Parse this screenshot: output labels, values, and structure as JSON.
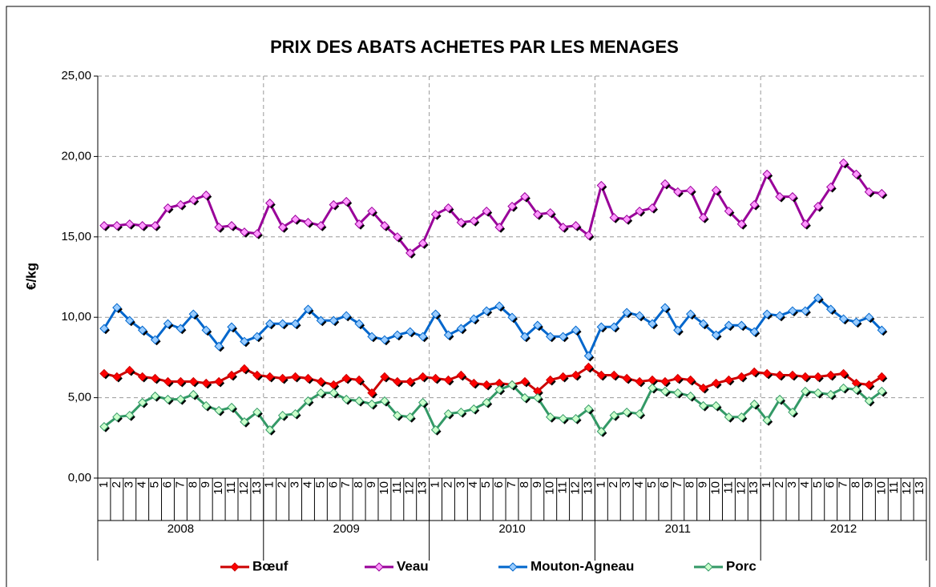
{
  "chart_data": {
    "type": "line",
    "title": "PRIX DES ABATS ACHETES PAR LES MENAGES",
    "y_label": "€/kg",
    "categories": [
      "1",
      "2",
      "3",
      "4",
      "5",
      "6",
      "7",
      "8",
      "9",
      "10",
      "11",
      "12",
      "13",
      "1",
      "2",
      "3",
      "4",
      "5",
      "6",
      "7",
      "8",
      "9",
      "10",
      "11",
      "12",
      "13",
      "1",
      "2",
      "3",
      "4",
      "5",
      "6",
      "7",
      "8",
      "9",
      "10",
      "11",
      "12",
      "13",
      "1",
      "2",
      "3",
      "4",
      "5",
      "6",
      "7",
      "8",
      "9",
      "10",
      "11",
      "12",
      "13",
      "1",
      "2",
      "3",
      "4",
      "5",
      "6",
      "7",
      "8",
      "9",
      "10",
      "11",
      "12",
      "13"
    ],
    "groups": [
      "2008",
      "2009",
      "2010",
      "2011",
      "2012"
    ],
    "ylim": [
      0,
      25
    ],
    "yticks": [
      {
        "value": 0,
        "label": "0,00"
      },
      {
        "value": 5,
        "label": "5,00"
      },
      {
        "value": 10,
        "label": "10,00"
      },
      {
        "value": 15,
        "label": "15,00"
      },
      {
        "value": 20,
        "label": "20,00"
      },
      {
        "value": 25,
        "label": "25,00"
      }
    ],
    "grid": true,
    "legend": "bottom",
    "series": [
      {
        "name": "Bœuf",
        "color": "#cc0000",
        "marker_color": "#ff0000",
        "values": [
          6.5,
          6.3,
          6.7,
          6.3,
          6.2,
          6.0,
          6.0,
          6.0,
          5.9,
          6.0,
          6.4,
          6.8,
          6.4,
          6.3,
          6.2,
          6.3,
          6.2,
          6.0,
          5.8,
          6.2,
          6.1,
          5.3,
          6.3,
          6.0,
          6.0,
          6.3,
          6.2,
          6.1,
          6.4,
          5.9,
          5.8,
          5.9,
          5.8,
          6.0,
          5.4,
          6.1,
          6.3,
          6.4,
          6.9,
          6.4,
          6.4,
          6.2,
          6.0,
          6.1,
          6.0,
          6.2,
          6.1,
          5.6,
          5.9,
          6.1,
          6.3,
          6.6,
          6.5,
          6.4,
          6.4,
          6.3,
          6.3,
          6.4,
          6.5,
          5.9,
          5.8,
          6.3,
          null,
          null,
          null
        ]
      },
      {
        "name": "Veau",
        "color": "#990099",
        "marker_color": "#ff99ff",
        "values": [
          15.7,
          15.7,
          15.8,
          15.7,
          15.7,
          16.8,
          17.0,
          17.3,
          17.6,
          15.6,
          15.7,
          15.3,
          15.2,
          17.1,
          15.6,
          16.1,
          15.9,
          15.7,
          17.0,
          17.2,
          15.8,
          16.6,
          15.7,
          15.0,
          14.0,
          14.6,
          16.4,
          16.8,
          15.9,
          16.0,
          16.6,
          15.6,
          16.9,
          17.5,
          16.4,
          16.5,
          15.6,
          15.7,
          15.1,
          18.2,
          16.2,
          16.1,
          16.6,
          16.8,
          18.3,
          17.8,
          17.9,
          16.2,
          17.9,
          16.6,
          15.8,
          17.0,
          18.9,
          17.5,
          17.5,
          15.8,
          16.9,
          18.1,
          19.6,
          18.9,
          17.8,
          17.7,
          null,
          null,
          null
        ]
      },
      {
        "name": "Mouton-Agneau",
        "color": "#0066cc",
        "marker_color": "#99ccff",
        "values": [
          9.3,
          10.6,
          9.8,
          9.2,
          8.6,
          9.6,
          9.3,
          10.2,
          9.2,
          8.2,
          9.4,
          8.5,
          8.8,
          9.6,
          9.6,
          9.6,
          10.5,
          9.8,
          9.8,
          10.1,
          9.6,
          8.8,
          8.6,
          8.9,
          9.1,
          8.8,
          10.2,
          8.9,
          9.3,
          9.9,
          10.4,
          10.7,
          10.0,
          8.8,
          9.5,
          8.8,
          8.8,
          9.2,
          7.6,
          9.4,
          9.4,
          10.3,
          10.1,
          9.6,
          10.6,
          9.2,
          10.2,
          9.6,
          8.9,
          9.5,
          9.5,
          9.1,
          10.2,
          10.1,
          10.4,
          10.4,
          11.2,
          10.5,
          9.9,
          9.7,
          10.0,
          9.2,
          null,
          null,
          null
        ]
      },
      {
        "name": "Porc",
        "color": "#339966",
        "marker_color": "#ccffcc",
        "values": [
          3.2,
          3.8,
          3.9,
          4.7,
          5.1,
          4.9,
          4.9,
          5.2,
          4.5,
          4.2,
          4.4,
          3.5,
          4.1,
          3.0,
          3.9,
          4.0,
          4.8,
          5.3,
          5.3,
          4.9,
          4.8,
          4.6,
          4.8,
          3.9,
          3.8,
          4.7,
          3.0,
          4.0,
          4.1,
          4.3,
          4.7,
          5.5,
          5.8,
          5.0,
          5.0,
          3.8,
          3.7,
          3.7,
          4.3,
          2.9,
          3.9,
          4.1,
          4.0,
          5.6,
          5.4,
          5.3,
          5.1,
          4.5,
          4.5,
          3.8,
          3.8,
          4.6,
          3.6,
          4.9,
          4.1,
          5.4,
          5.3,
          5.2,
          5.6,
          5.5,
          4.8,
          5.4,
          null,
          null,
          null
        ]
      }
    ]
  }
}
